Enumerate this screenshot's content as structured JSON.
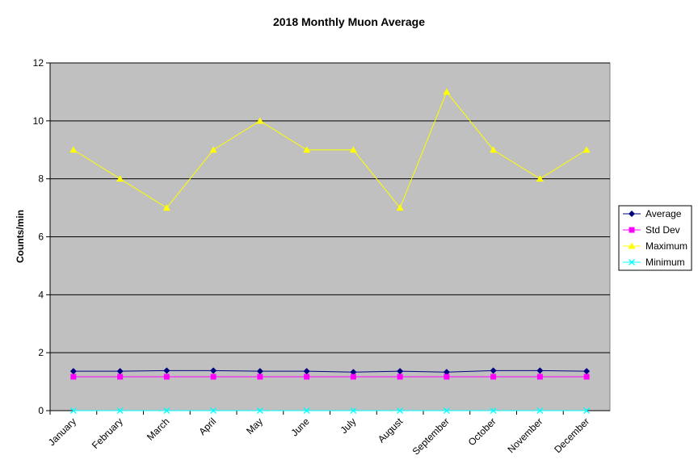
{
  "chart_data": {
    "type": "line",
    "title": "2018 Monthly Muon Average",
    "y_label": "Counts/min",
    "categories": [
      "January",
      "February",
      "March",
      "April",
      "May",
      "June",
      "July",
      "August",
      "September",
      "October",
      "November",
      "December"
    ],
    "series": [
      {
        "name": "Average",
        "color": "#000080",
        "marker": "diamond",
        "values": [
          1.36,
          1.36,
          1.38,
          1.38,
          1.36,
          1.36,
          1.33,
          1.36,
          1.33,
          1.38,
          1.38,
          1.36
        ]
      },
      {
        "name": "Std Dev",
        "color": "#ff00ff",
        "marker": "square",
        "values": [
          1.17,
          1.17,
          1.17,
          1.17,
          1.17,
          1.17,
          1.17,
          1.17,
          1.17,
          1.17,
          1.17,
          1.17
        ]
      },
      {
        "name": "Maximum",
        "color": "#ffff00",
        "marker": "triangle",
        "values": [
          9,
          8,
          7,
          9,
          10,
          9,
          9,
          7,
          11,
          9,
          8,
          9
        ]
      },
      {
        "name": "Minimum",
        "color": "#00ffff",
        "marker": "x",
        "values": [
          0,
          0,
          0,
          0,
          0,
          0,
          0,
          0,
          0,
          0,
          0,
          0
        ]
      }
    ],
    "ylim": [
      0,
      12
    ],
    "yticks": [
      0,
      2,
      4,
      6,
      8,
      10,
      12
    ],
    "grid": true,
    "legend": "right"
  }
}
